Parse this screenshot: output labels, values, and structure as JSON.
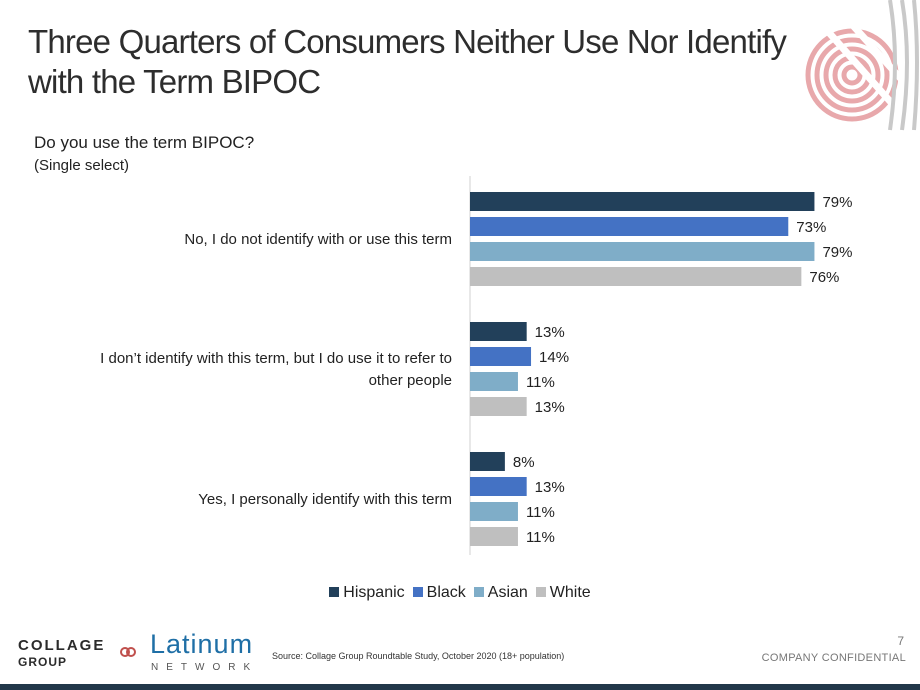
{
  "title_lines": [
    "Three Quarters of Consumers Neither Use Nor Identify",
    "with the Term BIPOC"
  ],
  "question": "Do you use the term BIPOC?",
  "question_note": "(Single select)",
  "chart_data": {
    "type": "bar",
    "orientation": "horizontal",
    "categories": [
      [
        "No, I do not identify with or use this term"
      ],
      [
        "I don’t identify with this term, but I do use it to refer to",
        "other people"
      ],
      [
        "Yes, I personally identify with this term"
      ]
    ],
    "series": [
      {
        "name": "Hispanic",
        "color": "#22405a",
        "values": [
          79,
          13,
          8
        ]
      },
      {
        "name": "Black",
        "color": "#4472c4",
        "values": [
          73,
          14,
          13
        ]
      },
      {
        "name": "Asian",
        "color": "#7fadc8",
        "values": [
          79,
          11,
          11
        ]
      },
      {
        "name": "White",
        "color": "#bfbfbf",
        "values": [
          76,
          13,
          11
        ]
      }
    ],
    "value_suffix": "%",
    "xlim": [
      0,
      100
    ],
    "legend_position": "bottom",
    "grid": false
  },
  "footer": {
    "brand_top": "COLLAGE",
    "brand_bottom": "GROUP",
    "partner_word": "Latinum",
    "partner_sub": "NETWORK",
    "source": "Source: Collage Group Roundtable Study, October 2020 (18+ population)",
    "page_number": "7",
    "confidential": "COMPANY CONFIDENTIAL"
  }
}
